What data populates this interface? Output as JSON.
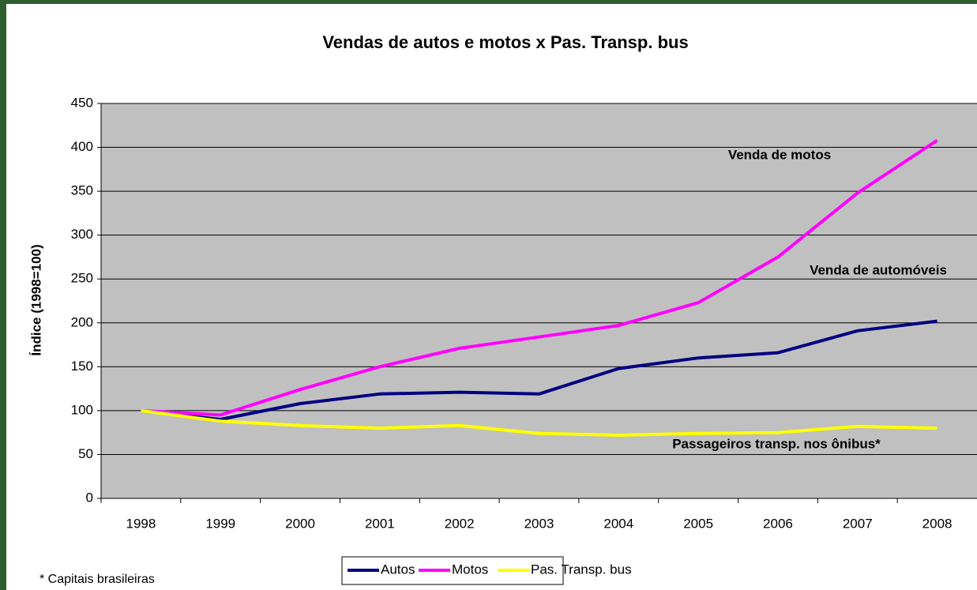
{
  "chart_data": {
    "type": "line",
    "title": "Vendas de autos e motos x Pas. Transp. bus",
    "y_label": "Índice (1998=100)",
    "categories": [
      "1998",
      "1999",
      "2000",
      "2001",
      "2002",
      "2003",
      "2004",
      "2005",
      "2006",
      "2007",
      "2008"
    ],
    "series": [
      {
        "name": "Autos",
        "color": "#000080",
        "values": [
          100,
          90,
          108,
          119,
          121,
          119,
          148,
          160,
          166,
          191,
          202
        ]
      },
      {
        "name": "Motos",
        "color": "#FF00FF",
        "values": [
          100,
          95,
          124,
          150,
          171,
          184,
          197,
          223,
          275,
          348,
          408
        ]
      },
      {
        "name": "Pas. Transp. bus",
        "color": "#FFFF00",
        "values": [
          100,
          88,
          83,
          80,
          83,
          74,
          72,
          74,
          75,
          82,
          80
        ]
      }
    ],
    "ylim": [
      0,
      450
    ],
    "yticks": [
      0,
      50,
      100,
      150,
      200,
      250,
      300,
      350,
      400,
      450
    ],
    "grid": true,
    "legend": "bottom",
    "annotations": [
      "Venda de motos",
      "Venda de automóveis",
      "Passageiros transp. nos ônibus*"
    ],
    "note": "* Capitais brasileiras"
  }
}
